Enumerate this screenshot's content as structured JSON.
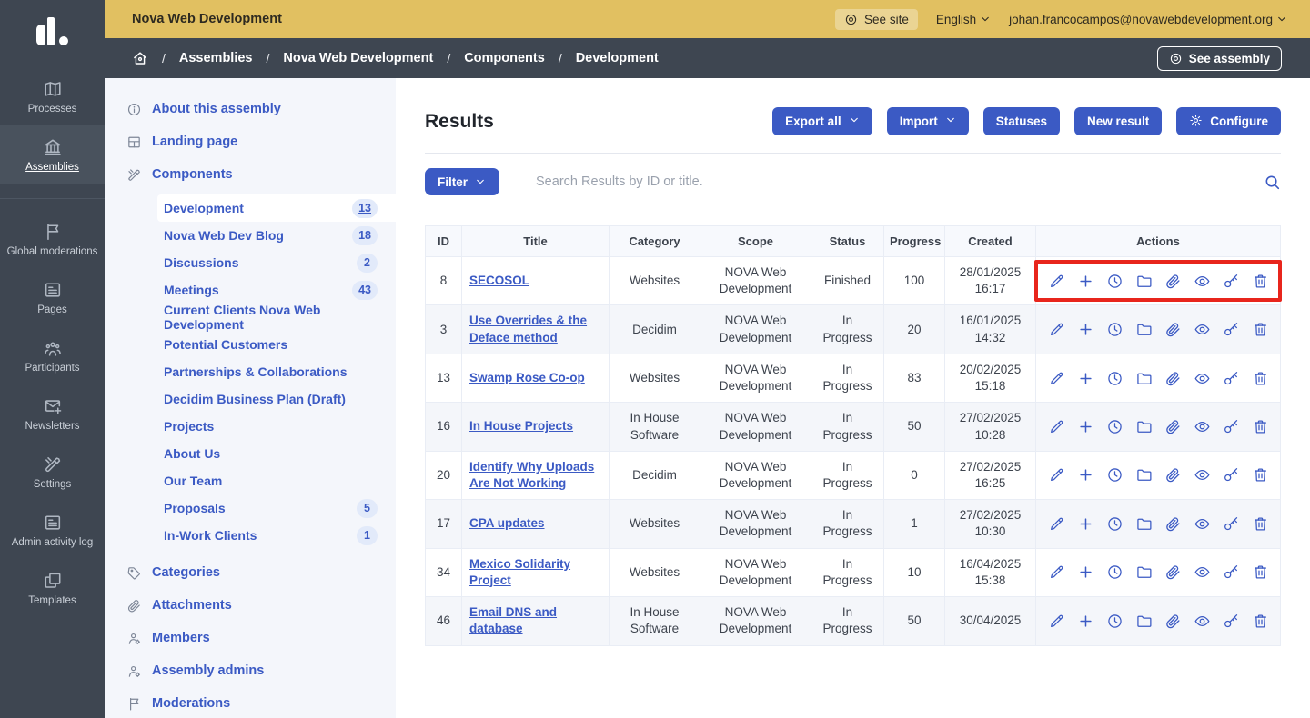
{
  "colors": {
    "brand_yellow": "#e1c061",
    "brand_dark": "#3e4651",
    "accent_blue": "#3b5ac4",
    "highlight_red": "#e8251c"
  },
  "top_bar": {
    "organization": "Nova Web Development",
    "see_site": "See site",
    "language": "English",
    "user_email": "johan.francocampos@novawebdevelopment.org"
  },
  "breadcrumb": {
    "items": [
      "Assemblies",
      "Nova Web Development",
      "Components",
      "Development"
    ],
    "see_assembly": "See assembly"
  },
  "app_sidebar": {
    "items": [
      {
        "label": "Processes",
        "icon": "map"
      },
      {
        "label": "Assemblies",
        "icon": "building",
        "active": true
      },
      {
        "label": "Global moderations",
        "icon": "flag",
        "divider_before": true
      },
      {
        "label": "Pages",
        "icon": "article"
      },
      {
        "label": "Participants",
        "icon": "group"
      },
      {
        "label": "Newsletters",
        "icon": "mail-add"
      },
      {
        "label": "Settings",
        "icon": "tools"
      },
      {
        "label": "Admin activity log",
        "icon": "article"
      },
      {
        "label": "Templates",
        "icon": "copy"
      }
    ]
  },
  "assembly_menu": {
    "items": [
      {
        "label": "About this assembly",
        "icon": "info"
      },
      {
        "label": "Landing page",
        "icon": "layout"
      },
      {
        "label": "Components",
        "icon": "tools",
        "children": [
          {
            "label": "Development",
            "badge": "13",
            "active": true
          },
          {
            "label": "Nova Web Dev Blog",
            "badge": "18"
          },
          {
            "label": "Discussions",
            "badge": "2"
          },
          {
            "label": "Meetings",
            "badge": "43"
          },
          {
            "label": "Current Clients Nova Web Development"
          },
          {
            "label": "Potential Customers"
          },
          {
            "label": "Partnerships & Collaborations"
          },
          {
            "label": "Decidim Business Plan (Draft)"
          },
          {
            "label": "Projects"
          },
          {
            "label": "About Us"
          },
          {
            "label": "Our Team"
          },
          {
            "label": "Proposals",
            "badge": "5"
          },
          {
            "label": "In-Work Clients",
            "badge": "1"
          }
        ]
      },
      {
        "label": "Categories",
        "icon": "tag"
      },
      {
        "label": "Attachments",
        "icon": "paperclip"
      },
      {
        "label": "Members",
        "icon": "user"
      },
      {
        "label": "Assembly admins",
        "icon": "user"
      },
      {
        "label": "Moderations",
        "icon": "flag"
      }
    ]
  },
  "results": {
    "title": "Results",
    "buttons": [
      {
        "label": "Export all",
        "icon_after": "chevron-down"
      },
      {
        "label": "Import",
        "icon_after": "chevron-down"
      },
      {
        "label": "Statuses"
      },
      {
        "label": "New result"
      },
      {
        "label": "Configure",
        "icon_before": "gear"
      }
    ],
    "filter_label": "Filter",
    "search_placeholder": "Search Results by ID or title."
  },
  "results_table": {
    "columns": [
      "ID",
      "Title",
      "Category",
      "Scope",
      "Status",
      "Progress",
      "Created",
      "Actions"
    ],
    "row_actions": [
      "pencil",
      "plus",
      "clock",
      "folder",
      "paperclip",
      "eye",
      "key",
      "trash"
    ],
    "rows": [
      {
        "id": "8",
        "title": "SECOSOL",
        "category": "Websites",
        "scope": "NOVA Web Development",
        "status": "Finished",
        "progress": "100",
        "created": "28/01/2025 16:17",
        "highlighted": true
      },
      {
        "id": "3",
        "title": "Use Overrides & the Deface method",
        "category": "Decidim",
        "scope": "NOVA Web Development",
        "status": "In Progress",
        "progress": "20",
        "created": "16/01/2025 14:32"
      },
      {
        "id": "13",
        "title": "Swamp Rose Co-op",
        "category": "Websites",
        "scope": "NOVA Web Development",
        "status": "In Progress",
        "progress": "83",
        "created": "20/02/2025 15:18"
      },
      {
        "id": "16",
        "title": "In House Projects",
        "category": "In House Software",
        "scope": "NOVA Web Development",
        "status": "In Progress",
        "progress": "50",
        "created": "27/02/2025 10:28"
      },
      {
        "id": "20",
        "title": "Identify Why Uploads Are Not Working",
        "category": "Decidim",
        "scope": "NOVA Web Development",
        "status": "In Progress",
        "progress": "0",
        "created": "27/02/2025 16:25"
      },
      {
        "id": "17",
        "title": "CPA updates",
        "category": "Websites",
        "scope": "NOVA Web Development",
        "status": "In Progress",
        "progress": "1",
        "created": "27/02/2025 10:30"
      },
      {
        "id": "34",
        "title": "Mexico Solidarity Project",
        "category": "Websites",
        "scope": "NOVA Web Development",
        "status": "In Progress",
        "progress": "10",
        "created": "16/04/2025 15:38"
      },
      {
        "id": "46",
        "title": "Email DNS and database",
        "category": "In House Software",
        "scope": "NOVA Web Development",
        "status": "In Progress",
        "progress": "50",
        "created": "30/04/2025"
      }
    ]
  }
}
